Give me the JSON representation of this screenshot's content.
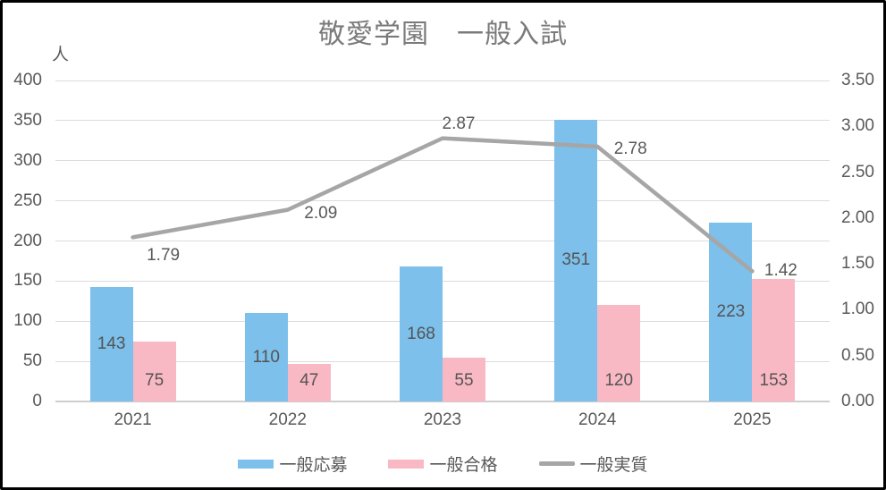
{
  "title": "敬愛学園　一般入試",
  "colors": {
    "applications_bar": "#7cc0eb",
    "accepted_bar": "#f9b9c4",
    "ratio_line": "#a6a6a6",
    "gridline": "#dcdcdc",
    "axis_baseline": "#cfcdcd",
    "tick_text": "#595959",
    "title_text": "#7a7a7a"
  },
  "chart_data": {
    "type": "bar+line combo",
    "title": "敬愛学園　一般入試",
    "categories": [
      "2021",
      "2022",
      "2023",
      "2024",
      "2025"
    ],
    "series": [
      {
        "name": "一般応募",
        "type": "bar",
        "axis": "left",
        "values": [
          143,
          110,
          168,
          351,
          223
        ],
        "labels": [
          "143",
          "110",
          "168",
          "351",
          "223"
        ]
      },
      {
        "name": "一般合格",
        "type": "bar",
        "axis": "left",
        "values": [
          75,
          47,
          55,
          120,
          153
        ],
        "labels": [
          "75",
          "47",
          "55",
          "120",
          "153"
        ]
      },
      {
        "name": "一般実質",
        "type": "line",
        "axis": "right",
        "values": [
          1.79,
          2.09,
          2.87,
          2.78,
          1.42
        ],
        "labels": [
          "1.79",
          "2.09",
          "2.87",
          "2.78",
          "1.42"
        ]
      }
    ],
    "left_axis": {
      "unit_label": "人",
      "min": 0,
      "max": 400,
      "step": 50,
      "ticks": [
        "0",
        "50",
        "100",
        "150",
        "200",
        "250",
        "300",
        "350",
        "400"
      ]
    },
    "right_axis": {
      "min": 0,
      "max": 3.5,
      "step": 0.5,
      "ticks": [
        "0.00",
        "0.50",
        "1.00",
        "1.50",
        "2.00",
        "2.50",
        "3.00",
        "3.50"
      ]
    },
    "grid": true,
    "legend": {
      "position": "bottom",
      "entries": [
        "一般応募",
        "一般合格",
        "一般実質"
      ]
    }
  }
}
